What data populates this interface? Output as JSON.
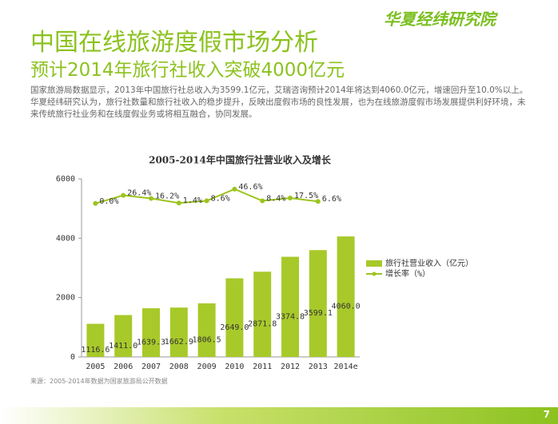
{
  "header": {
    "title": "中国在线旅游度假市场分析",
    "subtitle": "预计2014年旅行社收入突破4000亿元",
    "logo": "华夏经纬研究院"
  },
  "paragraphs": [
    "国家旅游局数据显示，2013年中国旅行社总收入为3599.1亿元，艾瑞咨询预计2014年将达到4060.0亿元，增速回升至10.0%以上。",
    "华夏经纬研究认为，旅行社数量和旅行社收入的稳步提升，反映出度假市场的良性发展，也为在线旅游度假市场发展提供利好环境，未来传统旅行社业务和在线度假业务或将相互融合，协同发展。"
  ],
  "chart_data": {
    "type": "bar",
    "title": "2005-2014年中国旅行社营业收入及增长",
    "categories": [
      "2005",
      "2006",
      "2007",
      "2008",
      "2009",
      "2010",
      "2011",
      "2012",
      "2013",
      "2014e"
    ],
    "series": [
      {
        "name": "旅行社营业收入（亿元）",
        "type": "bar",
        "color": "#a8c92a",
        "values": [
          1116.6,
          1411.0,
          1639.3,
          1662.9,
          1806.5,
          2649.0,
          2871.8,
          3374.8,
          3599.1,
          4060.0
        ],
        "value_labels": [
          "1116.6",
          "1411.0",
          "1639.3",
          "1662.9",
          "1806.5",
          "2649.0",
          "2871.8",
          "3374.8",
          "3599.1",
          "4060.0"
        ]
      },
      {
        "name": "增长率（%）",
        "type": "line",
        "axis": "y2",
        "color": "#9cc41e",
        "values": [
          0.0,
          26.4,
          16.2,
          1.4,
          8.6,
          46.6,
          8.4,
          17.5,
          6.6,
          null
        ],
        "value_labels": [
          "0.0%",
          "26.4%",
          "16.2%",
          "1.4%",
          "8.6%",
          "46.6%",
          "8.4%",
          "17.5%",
          "6.6%",
          null
        ]
      }
    ],
    "ylim": [
      0,
      6000
    ],
    "yticks": [
      0,
      2000,
      4000,
      6000
    ],
    "y2lim": [
      -500,
      80
    ],
    "legend": "right"
  },
  "footer": {
    "source": "来源：2005-2014年数据为国家旅游局公开数据",
    "page": "7"
  }
}
